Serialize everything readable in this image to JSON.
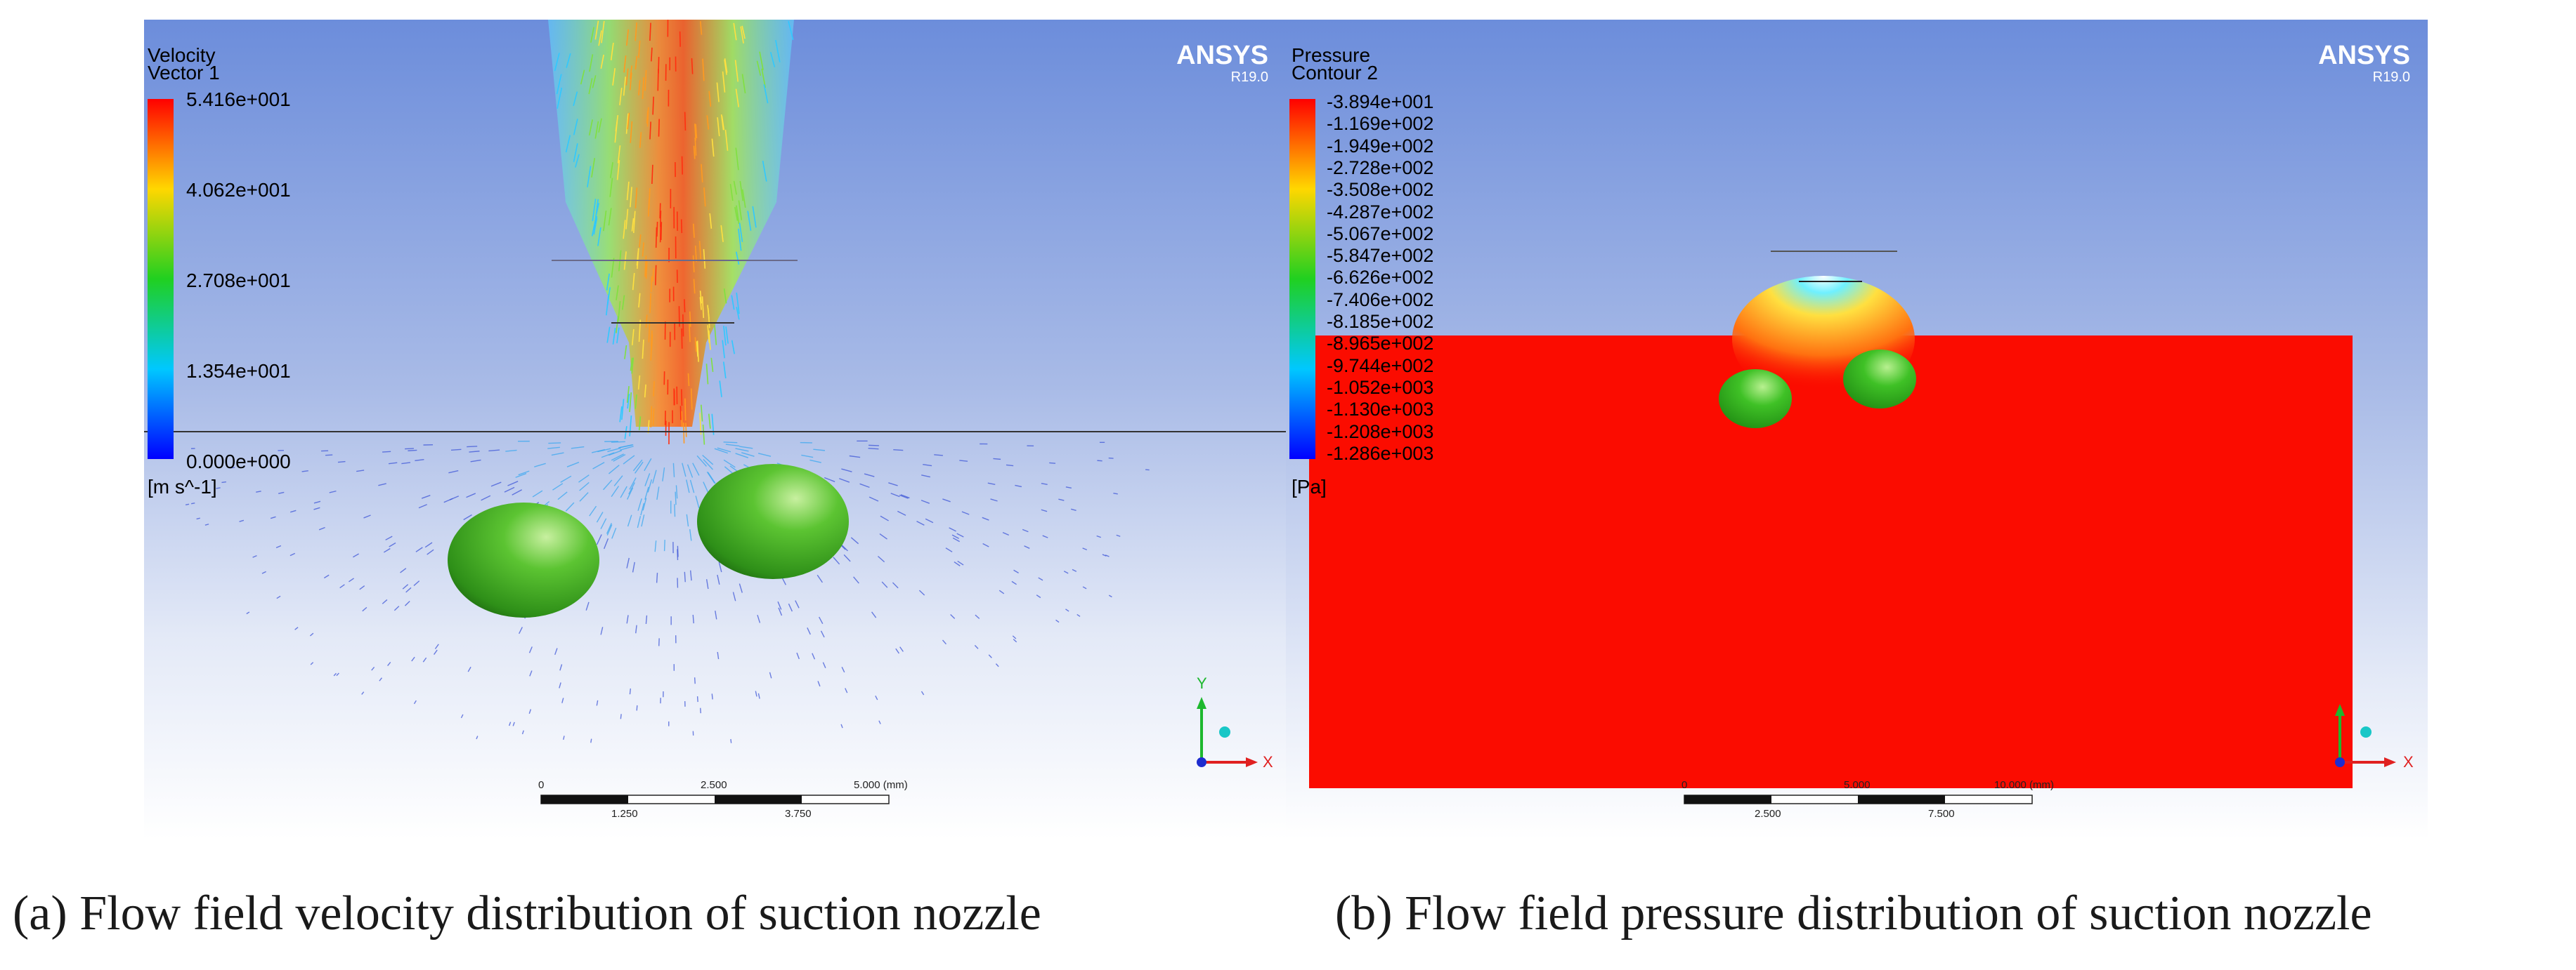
{
  "panel_a": {
    "legend_title": "Velocity",
    "legend_subtitle": "Vector 1",
    "ticks": [
      "5.416e+001",
      "4.062e+001",
      "2.708e+001",
      "1.354e+001",
      "0.000e+000"
    ],
    "unit": "[m s^-1]",
    "brand": "ANSYS",
    "version": "R19.0",
    "scale_top": [
      "0",
      "2.500",
      "5.000  (mm)"
    ],
    "scale_bottom": [
      "1.250",
      "3.750"
    ],
    "axis_y": "Y",
    "axis_x": "X",
    "colors": {
      "bg_top": "#6f8fd9",
      "bg_bottom": "#ffffff",
      "sphere": "#3aa620"
    }
  },
  "panel_b": {
    "legend_title": "Pressure",
    "legend_subtitle": "Contour 2",
    "ticks": [
      "-3.894e+001",
      "-1.169e+002",
      "-1.949e+002",
      "-2.728e+002",
      "-3.508e+002",
      "-4.287e+002",
      "-5.067e+002",
      "-5.847e+002",
      "-6.626e+002",
      "-7.406e+002",
      "-8.185e+002",
      "-8.965e+002",
      "-9.744e+002",
      "-1.052e+003",
      "-1.130e+003",
      "-1.208e+003",
      "-1.286e+003"
    ],
    "unit": "[Pa]",
    "brand": "ANSYS",
    "version": "R19.0",
    "scale_top": [
      "0",
      "5.000",
      "10.000  (mm)"
    ],
    "scale_bottom": [
      "2.500",
      "7.500"
    ],
    "axis_x": "X",
    "colors": {
      "field": "#fb0c00",
      "bg_top": "#6f8fd9",
      "sphere": "#35b51f"
    }
  },
  "captions": {
    "a": "(a) Flow field velocity distribution of suction nozzle",
    "b": "(b) Flow field pressure distribution of suction nozzle"
  }
}
